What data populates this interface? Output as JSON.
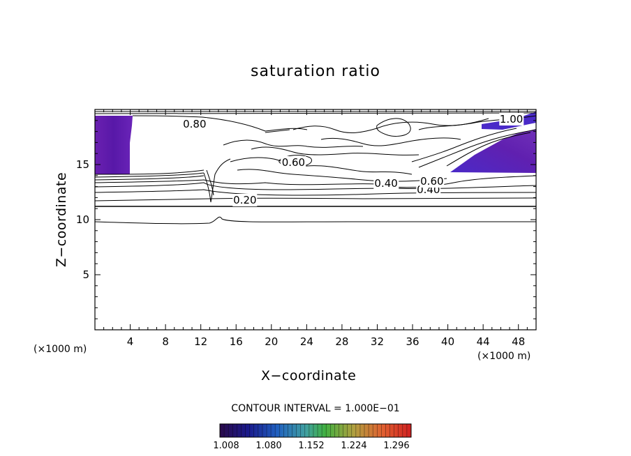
{
  "chart_data": {
    "type": "contour",
    "title": "saturation ratio",
    "xlabel": "X−coordinate",
    "ylabel": "Z−coordinate",
    "x_unit": "(×1000 m)",
    "z_unit": "(×1000 m)",
    "xlim": [
      0,
      50
    ],
    "ylim": [
      0,
      20
    ],
    "x_ticks": [
      4,
      8,
      12,
      16,
      20,
      24,
      28,
      32,
      36,
      40,
      44,
      48
    ],
    "y_ticks": [
      5,
      10,
      15
    ],
    "contour_interval_text": "CONTOUR INTERVAL = 1.000E−01",
    "contour_interval": 0.1,
    "contour_labels": [
      {
        "text": "0.80",
        "x": 11.3,
        "z": 18.7
      },
      {
        "text": "0.60",
        "x": 22.5,
        "z": 15.2
      },
      {
        "text": "0.40",
        "x": 33.0,
        "z": 13.3
      },
      {
        "text": "0.40",
        "x": 37.8,
        "z": 12.7
      },
      {
        "text": "0.60",
        "x": 38.2,
        "z": 13.5
      },
      {
        "text": "0.20",
        "x": 17.0,
        "z": 11.8
      },
      {
        "text": "1.00",
        "x": 47.2,
        "z": 19.1
      }
    ],
    "supersaturated_regions": [
      {
        "x": [
          0,
          4
        ],
        "z": [
          14,
          19.2
        ]
      },
      {
        "x": [
          40.5,
          50
        ],
        "z": [
          14,
          19.5
        ]
      }
    ],
    "colorbar": {
      "ticks": [
        "1.008",
        "1.080",
        "1.152",
        "1.224",
        "1.296"
      ]
    }
  }
}
